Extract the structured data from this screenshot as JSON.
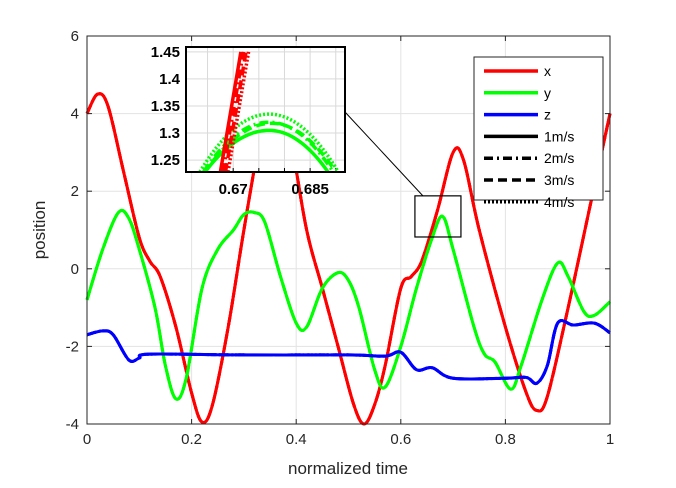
{
  "chart_data": {
    "type": "line",
    "title": "",
    "xlabel": "normalized time",
    "ylabel": "position",
    "xlim": [
      0,
      1
    ],
    "ylim": [
      -4,
      6
    ],
    "xticks": [
      0,
      0.2,
      0.4,
      0.6,
      0.8,
      1
    ],
    "xtick_labels": [
      "0",
      "0.2",
      "0.4",
      "0.6",
      "0.8",
      "1"
    ],
    "yticks": [
      -4,
      -2,
      0,
      2,
      4,
      6
    ],
    "ytick_labels": [
      "-4",
      "-2",
      "0",
      "2",
      "4",
      "6"
    ],
    "grid": true,
    "legend_placement": "top-right",
    "legend": [
      {
        "label": "x",
        "color": "#ff0000",
        "style": "solid"
      },
      {
        "label": "y",
        "color": "#00ff00",
        "style": "solid"
      },
      {
        "label": "z",
        "color": "#0000ff",
        "style": "solid"
      },
      {
        "label": "1m/s",
        "color": "#000000",
        "style": "solid"
      },
      {
        "label": "2m/s",
        "color": "#000000",
        "style": "dashdot"
      },
      {
        "label": "3m/s",
        "color": "#000000",
        "style": "dashed"
      },
      {
        "label": "4m/s",
        "color": "#000000",
        "style": "dotted"
      }
    ],
    "series": [
      {
        "name": "x",
        "color": "#ff0000",
        "x": [
          0,
          0.02,
          0.04,
          0.07,
          0.1,
          0.12,
          0.14,
          0.17,
          0.2,
          0.22,
          0.24,
          0.27,
          0.3,
          0.33,
          0.36,
          0.39,
          0.42,
          0.45,
          0.48,
          0.51,
          0.53,
          0.55,
          0.57,
          0.6,
          0.62,
          0.64,
          0.67,
          0.7,
          0.72,
          0.75,
          0.8,
          0.84,
          0.86,
          0.88,
          0.92,
          0.96,
          1
        ],
        "y": [
          4.0,
          4.5,
          4.2,
          2.5,
          0.8,
          0.2,
          -0.2,
          -1.5,
          -3.2,
          -3.95,
          -3.5,
          -1.5,
          1.0,
          3.3,
          5.0,
          3.3,
          1.0,
          -0.5,
          -2.0,
          -3.5,
          -4.0,
          -3.5,
          -2.5,
          -0.5,
          -0.2,
          0.2,
          1.5,
          3.0,
          2.8,
          1.0,
          -1.5,
          -3.2,
          -3.65,
          -3.3,
          -1.0,
          1.5,
          4.0
        ]
      },
      {
        "name": "y",
        "color": "#00ff00",
        "x": [
          0,
          0.03,
          0.06,
          0.08,
          0.1,
          0.13,
          0.15,
          0.17,
          0.19,
          0.22,
          0.25,
          0.28,
          0.3,
          0.32,
          0.34,
          0.37,
          0.4,
          0.42,
          0.45,
          0.48,
          0.5,
          0.52,
          0.55,
          0.57,
          0.6,
          0.63,
          0.66,
          0.68,
          0.7,
          0.74,
          0.76,
          0.78,
          0.81,
          0.83,
          0.87,
          0.9,
          0.92,
          0.95,
          0.97,
          1
        ],
        "y": [
          -0.8,
          0.5,
          1.45,
          1.3,
          0.5,
          -1.0,
          -2.5,
          -3.35,
          -2.8,
          -0.5,
          0.5,
          1.0,
          1.4,
          1.45,
          1.2,
          -0.2,
          -1.4,
          -1.5,
          -0.5,
          -0.1,
          -0.3,
          -1.0,
          -2.6,
          -3.05,
          -2.0,
          -0.5,
          0.8,
          1.35,
          0.5,
          -1.5,
          -2.2,
          -2.4,
          -3.1,
          -2.5,
          -0.8,
          0.15,
          -0.2,
          -1.1,
          -1.2,
          -0.85
        ]
      },
      {
        "name": "z",
        "color": "#0000ff",
        "x": [
          0,
          0.03,
          0.05,
          0.08,
          0.1,
          0.12,
          0.3,
          0.5,
          0.57,
          0.6,
          0.63,
          0.66,
          0.7,
          0.8,
          0.84,
          0.86,
          0.88,
          0.9,
          0.93,
          0.97,
          1
        ],
        "y": [
          -1.7,
          -1.6,
          -1.7,
          -2.35,
          -2.3,
          -2.2,
          -2.22,
          -2.22,
          -2.25,
          -2.15,
          -2.6,
          -2.55,
          -2.82,
          -2.82,
          -2.8,
          -2.95,
          -2.5,
          -1.4,
          -1.45,
          -1.4,
          -1.65
        ]
      }
    ],
    "zoom_box": {
      "x": [
        0.627,
        0.715
      ],
      "y": [
        0.82,
        1.88
      ]
    },
    "inset": {
      "xlim": [
        0.6608,
        0.6918
      ],
      "ylim": [
        1.228,
        1.459
      ],
      "xticks": [
        0.67,
        0.685
      ],
      "xtick_labels": [
        "0.67",
        "0.685"
      ],
      "yticks": [
        1.25,
        1.3,
        1.35,
        1.4,
        1.45
      ],
      "ytick_labels": [
        "1.25",
        "1.3",
        "1.35",
        "1.4",
        "1.45"
      ],
      "grid": true,
      "x_lines": [
        {
          "speed": "1m/s",
          "style": "solid",
          "x": [
            0.6675,
            0.6715
          ],
          "y": [
            1.228,
            1.45
          ]
        },
        {
          "speed": "2m/s",
          "style": "dashdot",
          "x": [
            0.668,
            0.672
          ],
          "y": [
            1.228,
            1.45
          ]
        },
        {
          "speed": "3m/s",
          "style": "dashed",
          "x": [
            0.6685,
            0.6725
          ],
          "y": [
            1.228,
            1.45
          ]
        },
        {
          "speed": "4m/s",
          "style": "dotted",
          "x": [
            0.669,
            0.673
          ],
          "y": [
            1.228,
            1.45
          ]
        }
      ],
      "y_arcs": [
        {
          "speed": "1m/s",
          "style": "solid",
          "peak_x": 0.677,
          "peak_y": 1.305,
          "x_start": 0.6645,
          "x_end": 0.6885
        },
        {
          "speed": "2m/s",
          "style": "dashdot",
          "peak_x": 0.677,
          "peak_y": 1.32,
          "x_start": 0.6642,
          "x_end": 0.6895
        },
        {
          "speed": "3m/s",
          "style": "dashed",
          "peak_x": 0.6775,
          "peak_y": 1.318,
          "x_start": 0.6645,
          "x_end": 0.69
        },
        {
          "speed": "4m/s",
          "style": "dotted",
          "peak_x": 0.677,
          "peak_y": 1.335,
          "x_start": 0.6635,
          "x_end": 0.6905
        }
      ]
    }
  }
}
